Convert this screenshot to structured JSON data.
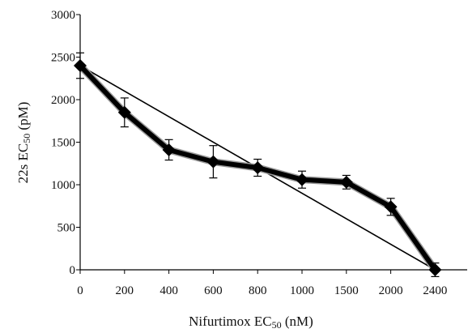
{
  "chart_data": {
    "type": "line",
    "title": "",
    "xlabel": "Nifurtimox EC50 (nM)",
    "ylabel": "22s EC50 (pM)",
    "x_categories": [
      "0",
      "200",
      "400",
      "600",
      "800",
      "1000",
      "1500",
      "2000",
      "2400"
    ],
    "y_ticks": [
      0,
      500,
      1000,
      1500,
      2000,
      2500,
      3000
    ],
    "ylim": [
      0,
      3000
    ],
    "grid": false,
    "legend": "none",
    "series": [
      {
        "values": [
          2400,
          1850,
          1410,
          1270,
          1200,
          1060,
          1030,
          740,
          0
        ],
        "errors": [
          150,
          170,
          120,
          190,
          100,
          100,
          80,
          100,
          80
        ],
        "marker": "diamond",
        "color": "#000000"
      }
    ],
    "reference_line": {
      "from": {
        "x": "0",
        "y": 2400
      },
      "to": {
        "x": "2400",
        "y": 0
      },
      "color": "#000000"
    }
  }
}
